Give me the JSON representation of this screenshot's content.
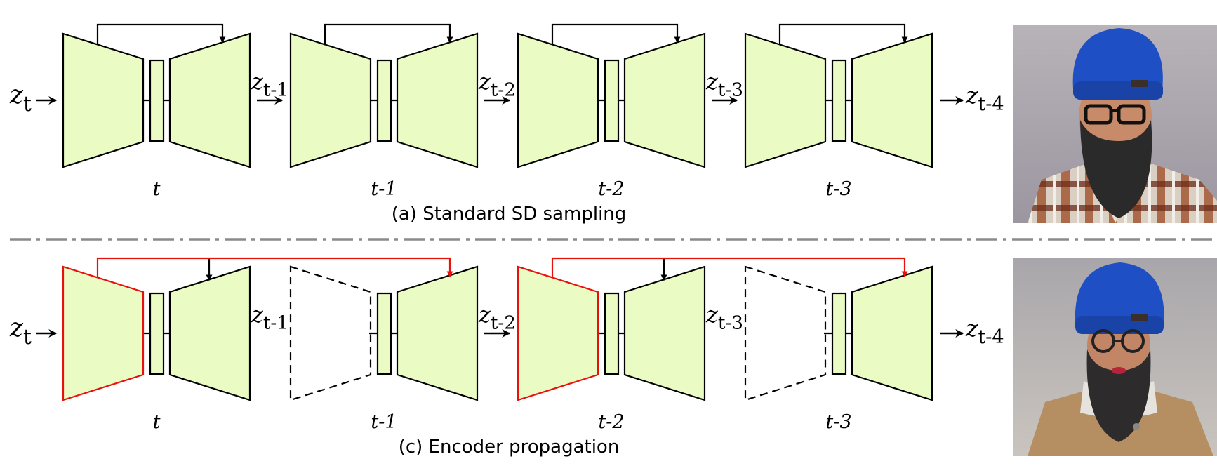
{
  "panels": [
    {
      "caption": "(a) Standard SD sampling",
      "mode": "standard",
      "input_label": {
        "base": "z",
        "sub": "t"
      },
      "step_labels": [
        {
          "base": "z",
          "sub": "t-1"
        },
        {
          "base": "z",
          "sub": "t-2"
        },
        {
          "base": "z",
          "sub": "t-3"
        }
      ],
      "output_label": {
        "base": "z",
        "sub": "t-4"
      },
      "timesteps": [
        {
          "label": "t",
          "encoder": "active"
        },
        {
          "label": "t-1",
          "encoder": "active"
        },
        {
          "label": "t-2",
          "encoder": "active"
        },
        {
          "label": "t-3",
          "encoder": "active"
        }
      ],
      "image": "man-blue-beanie-glasses-plaid-shirt"
    },
    {
      "caption": "(c) Encoder propagation",
      "mode": "encoder-propagation",
      "input_label": {
        "base": "z",
        "sub": "t"
      },
      "step_labels": [
        {
          "base": "z",
          "sub": "t-1"
        },
        {
          "base": "z",
          "sub": "t-2"
        },
        {
          "base": "z",
          "sub": "t-3"
        }
      ],
      "output_label": {
        "base": "z",
        "sub": "t-4"
      },
      "timesteps": [
        {
          "label": "t",
          "encoder": "key"
        },
        {
          "label": "t-1",
          "encoder": "skipped"
        },
        {
          "label": "t-2",
          "encoder": "key"
        },
        {
          "label": "t-3",
          "encoder": "skipped"
        }
      ],
      "image": "man-blue-beanie-round-glasses-tan-jacket"
    }
  ],
  "colors": {
    "block_fill": "#eafbc4",
    "key_encoder_stroke": "#e8120c",
    "separator": "#8a8a8a"
  }
}
